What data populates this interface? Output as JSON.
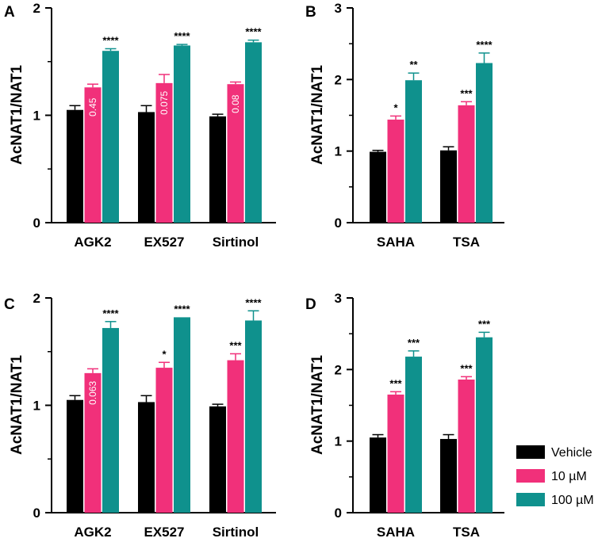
{
  "colors": {
    "Vehicle": "#000000",
    "10 µM": "#F1307A",
    "100 µM": "#0F918D"
  },
  "legend": [
    "Vehicle",
    "10 µM",
    "100 µM"
  ],
  "chart_data": [
    {
      "panel": "A",
      "type": "bar",
      "ylabel": "AcNAT1/NAT1",
      "ylim": [
        0,
        2
      ],
      "yticks": [
        "0",
        "1",
        "2"
      ],
      "categories": [
        "AGK2",
        "EX527",
        "Sirtinol"
      ],
      "series": [
        {
          "name": "Vehicle",
          "values": [
            1.05,
            1.03,
            0.99
          ],
          "errors": [
            0.04,
            0.06,
            0.02
          ]
        },
        {
          "name": "10 µM",
          "values": [
            1.26,
            1.3,
            1.29
          ],
          "errors": [
            0.03,
            0.08,
            0.02
          ]
        },
        {
          "name": "100 µM",
          "values": [
            1.6,
            1.65,
            1.68
          ],
          "errors": [
            0.02,
            0.01,
            0.02
          ]
        }
      ],
      "annotations": [
        {
          "category": 0,
          "series": 1,
          "text": "0.45",
          "style": "inbar"
        },
        {
          "category": 1,
          "series": 1,
          "text": "0.075",
          "style": "inbar"
        },
        {
          "category": 2,
          "series": 1,
          "text": "0.08",
          "style": "inbar"
        },
        {
          "category": 0,
          "series": 2,
          "text": "****",
          "style": "star"
        },
        {
          "category": 1,
          "series": 2,
          "text": "****",
          "style": "star"
        },
        {
          "category": 2,
          "series": 2,
          "text": "****",
          "style": "star"
        }
      ]
    },
    {
      "panel": "B",
      "type": "bar",
      "ylabel": "AcNAT1/NAT1",
      "ylim": [
        0,
        3
      ],
      "yticks": [
        "0",
        "1",
        "2",
        "3"
      ],
      "categories": [
        "SAHA",
        "TSA"
      ],
      "series": [
        {
          "name": "Vehicle",
          "values": [
            0.99,
            1.01
          ],
          "errors": [
            0.02,
            0.05
          ]
        },
        {
          "name": "10 µM",
          "values": [
            1.44,
            1.64
          ],
          "errors": [
            0.05,
            0.05
          ]
        },
        {
          "name": "100 µM",
          "values": [
            1.99,
            2.23
          ],
          "errors": [
            0.1,
            0.14
          ]
        }
      ],
      "annotations": [
        {
          "category": 0,
          "series": 1,
          "text": "*",
          "style": "star"
        },
        {
          "category": 1,
          "series": 1,
          "text": "***",
          "style": "star"
        },
        {
          "category": 0,
          "series": 2,
          "text": "**",
          "style": "star"
        },
        {
          "category": 1,
          "series": 2,
          "text": "****",
          "style": "star"
        }
      ]
    },
    {
      "panel": "C",
      "type": "bar",
      "ylabel": "AcNAT1/NAT1",
      "ylim": [
        0,
        2
      ],
      "yticks": [
        "0",
        "1",
        "2"
      ],
      "categories": [
        "AGK2",
        "EX527",
        "Sirtinol"
      ],
      "series": [
        {
          "name": "Vehicle",
          "values": [
            1.05,
            1.03,
            0.99
          ],
          "errors": [
            0.04,
            0.06,
            0.02
          ]
        },
        {
          "name": "10 µM",
          "values": [
            1.3,
            1.35,
            1.42
          ],
          "errors": [
            0.04,
            0.05,
            0.06
          ]
        },
        {
          "name": "100 µM",
          "values": [
            1.72,
            1.82,
            1.79
          ],
          "errors": [
            0.06,
            0.0,
            0.09
          ]
        }
      ],
      "annotations": [
        {
          "category": 0,
          "series": 1,
          "text": "0.063",
          "style": "inbar"
        },
        {
          "category": 1,
          "series": 1,
          "text": "*",
          "style": "star"
        },
        {
          "category": 2,
          "series": 1,
          "text": "***",
          "style": "star"
        },
        {
          "category": 0,
          "series": 2,
          "text": "****",
          "style": "star"
        },
        {
          "category": 1,
          "series": 2,
          "text": "****",
          "style": "star"
        },
        {
          "category": 2,
          "series": 2,
          "text": "****",
          "style": "star"
        }
      ]
    },
    {
      "panel": "D",
      "type": "bar",
      "ylabel": "AcNAT1/NAT1",
      "ylim": [
        0,
        3
      ],
      "yticks": [
        "0",
        "1",
        "2",
        "3"
      ],
      "categories": [
        "SAHA",
        "TSA"
      ],
      "series": [
        {
          "name": "Vehicle",
          "values": [
            1.05,
            1.03
          ],
          "errors": [
            0.04,
            0.06
          ]
        },
        {
          "name": "10 µM",
          "values": [
            1.65,
            1.86
          ],
          "errors": [
            0.04,
            0.04
          ]
        },
        {
          "name": "100 µM",
          "values": [
            2.18,
            2.45
          ],
          "errors": [
            0.08,
            0.07
          ]
        }
      ],
      "annotations": [
        {
          "category": 0,
          "series": 1,
          "text": "***",
          "style": "star"
        },
        {
          "category": 1,
          "series": 1,
          "text": "***",
          "style": "star"
        },
        {
          "category": 0,
          "series": 2,
          "text": "***",
          "style": "star"
        },
        {
          "category": 1,
          "series": 2,
          "text": "***",
          "style": "star"
        }
      ]
    }
  ]
}
